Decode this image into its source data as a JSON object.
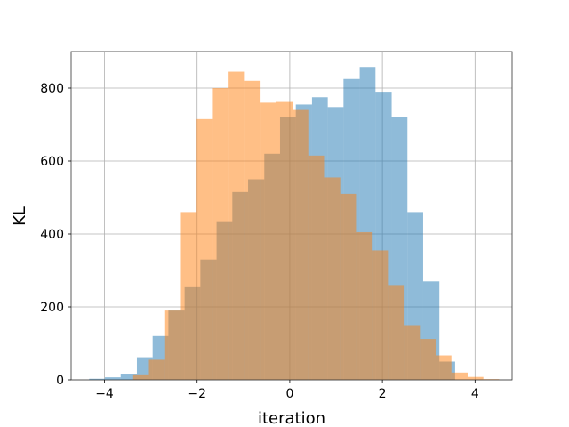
{
  "chart_data": {
    "type": "bar",
    "subtype": "overlapping-histogram",
    "title": "",
    "xlabel": "iteration",
    "ylabel": "KL",
    "xlim": [
      -4.72,
      4.8
    ],
    "ylim": [
      0,
      900
    ],
    "xticks": [
      -4,
      -2,
      0,
      2,
      4
    ],
    "xtick_labels": [
      "−4",
      "−2",
      "0",
      "2",
      "4"
    ],
    "yticks": [
      0,
      200,
      400,
      600,
      800
    ],
    "ytick_labels": [
      "0",
      "200",
      "400",
      "600",
      "800"
    ],
    "grid": true,
    "legend": "none",
    "series": [
      {
        "color": "#1f77b4",
        "opacity": 0.5,
        "bin_edges": [
          -4.33,
          -3.99,
          -3.65,
          -3.3,
          -2.96,
          -2.62,
          -2.27,
          -1.93,
          -1.58,
          -1.24,
          -0.9,
          -0.55,
          -0.21,
          0.13,
          0.48,
          0.82,
          1.16,
          1.51,
          1.85,
          2.2,
          2.54,
          2.88,
          3.23,
          3.57
        ],
        "counts": [
          3,
          7,
          17,
          62,
          120,
          190,
          254,
          330,
          435,
          515,
          550,
          620,
          720,
          755,
          775,
          748,
          825,
          858,
          790,
          720,
          460,
          270,
          50
        ]
      },
      {
        "color": "#ff7f0e",
        "opacity": 0.5,
        "bin_edges": [
          -3.38,
          -3.04,
          -2.69,
          -2.35,
          -2.01,
          -1.66,
          -1.32,
          -0.97,
          -0.63,
          -0.29,
          0.06,
          0.4,
          0.74,
          1.09,
          1.43,
          1.77,
          2.12,
          2.46,
          2.81,
          3.15,
          3.49,
          3.84,
          4.18,
          4.52
        ],
        "counts": [
          15,
          55,
          190,
          460,
          715,
          800,
          845,
          820,
          760,
          762,
          740,
          615,
          555,
          510,
          405,
          355,
          260,
          150,
          112,
          67,
          20,
          8,
          2
        ]
      }
    ]
  }
}
